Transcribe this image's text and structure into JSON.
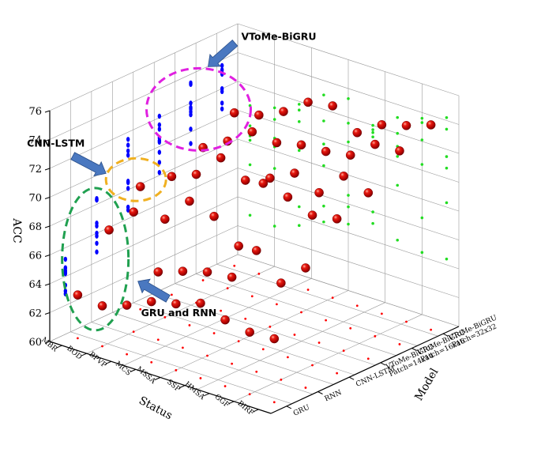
{
  "chart_data": {
    "type": "scatter",
    "axes": {
      "status": {
        "label": "Status",
        "categories": [
          "MBR",
          "BOD",
          "BPVP",
          "MCS",
          "MSSA",
          "SSP",
          "HMSA",
          "GGF",
          "BIRF"
        ]
      },
      "model": {
        "label": "Model",
        "categories": [
          "GRU",
          "RNN",
          "CNN-LSTM",
          "VToMe-BiGRU Patch=14x14",
          "VToMe-BiGRU Patch=16x16",
          "VToMe-BiGRU Patch=32x32"
        ]
      },
      "acc": {
        "label": "ACC",
        "range": [
          60,
          76
        ],
        "ticks": [
          60,
          62,
          64,
          66,
          68,
          70,
          72,
          74,
          76
        ]
      }
    },
    "series": [
      {
        "style": "red-ball",
        "color": "#d40000",
        "points": [
          {
            "status": "MBR",
            "model": "GRU",
            "acc": 63.0
          },
          {
            "status": "MBR",
            "model": "RNN",
            "acc": 66.5
          },
          {
            "status": "MBR",
            "model": "CNN-LSTM",
            "acc": 68.5
          },
          {
            "status": "MBR",
            "model": "VToMe-BiGRU Patch=14x14",
            "acc": 68.2
          },
          {
            "status": "MBR",
            "model": "VToMe-BiGRU Patch=16x16",
            "acc": 69.2
          },
          {
            "status": "MBR",
            "model": "VToMe-BiGRU Patch=32x32",
            "acc": 70.6
          },
          {
            "status": "BOD",
            "model": "GRU",
            "acc": 62.8
          },
          {
            "status": "BOD",
            "model": "RNN",
            "acc": 68.3
          },
          {
            "status": "BOD",
            "model": "CNN-LSTM",
            "acc": 66.8
          },
          {
            "status": "BOD",
            "model": "VToMe-BiGRU Patch=14x14",
            "acc": 68.9
          },
          {
            "status": "BOD",
            "model": "VToMe-BiGRU Patch=16x16",
            "acc": 70.2
          },
          {
            "status": "BOD",
            "model": "VToMe-BiGRU Patch=32x32",
            "acc": 71.0
          },
          {
            "status": "BPVP",
            "model": "GRU",
            "acc": 63.4
          },
          {
            "status": "BPVP",
            "model": "RNN",
            "acc": 64.7
          },
          {
            "status": "BPVP",
            "model": "CNN-LSTM",
            "acc": 68.6
          },
          {
            "status": "BPVP",
            "model": "VToMe-BiGRU Patch=14x14",
            "acc": 70.6
          },
          {
            "status": "BPVP",
            "model": "VToMe-BiGRU Patch=16x16",
            "acc": 71.4
          },
          {
            "status": "BPVP",
            "model": "VToMe-BiGRU Patch=32x32",
            "acc": 71.8
          },
          {
            "status": "MCS",
            "model": "GRU",
            "acc": 64.2
          },
          {
            "status": "MCS",
            "model": "RNN",
            "acc": 65.3
          },
          {
            "status": "MCS",
            "model": "CNN-LSTM",
            "acc": 68.1
          },
          {
            "status": "MCS",
            "model": "VToMe-BiGRU Patch=14x14",
            "acc": 69.6
          },
          {
            "status": "MCS",
            "model": "VToMe-BiGRU Patch=16x16",
            "acc": 71.2
          },
          {
            "status": "MCS",
            "model": "VToMe-BiGRU Patch=32x32",
            "acc": 73.0
          },
          {
            "status": "MSSA",
            "model": "GRU",
            "acc": 64.6
          },
          {
            "status": "MSSA",
            "model": "RNN",
            "acc": 65.8
          },
          {
            "status": "MSSA",
            "model": "CNN-LSTM",
            "acc": 66.6
          },
          {
            "status": "MSSA",
            "model": "VToMe-BiGRU Patch=14x14",
            "acc": 70.3
          },
          {
            "status": "MSSA",
            "model": "VToMe-BiGRU Patch=16x16",
            "acc": 71.6
          },
          {
            "status": "MSSA",
            "model": "VToMe-BiGRU Patch=32x32",
            "acc": 73.3
          },
          {
            "status": "SSP",
            "model": "GRU",
            "acc": 65.2
          },
          {
            "status": "SSP",
            "model": "RNN",
            "acc": 66.0
          },
          {
            "status": "SSP",
            "model": "CNN-LSTM",
            "acc": 71.5
          },
          {
            "status": "SSP",
            "model": "VToMe-BiGRU Patch=14x14",
            "acc": 71.2
          },
          {
            "status": "SSP",
            "model": "VToMe-BiGRU Patch=16x16",
            "acc": 71.7
          },
          {
            "status": "SSP",
            "model": "VToMe-BiGRU Patch=32x32",
            "acc": 72.0
          },
          {
            "status": "HMSA",
            "model": "GRU",
            "acc": 64.6
          },
          {
            "status": "HMSA",
            "model": "RNN",
            "acc": 68.4
          },
          {
            "status": "HMSA",
            "model": "CNN-LSTM",
            "acc": 71.1
          },
          {
            "status": "HMSA",
            "model": "VToMe-BiGRU Patch=14x14",
            "acc": 70.4
          },
          {
            "status": "HMSA",
            "model": "VToMe-BiGRU Patch=16x16",
            "acc": 72.0
          },
          {
            "status": "HMSA",
            "model": "VToMe-BiGRU Patch=32x32",
            "acc": 73.1
          },
          {
            "status": "GGF",
            "model": "GRU",
            "acc": 64.3
          },
          {
            "status": "GGF",
            "model": "RNN",
            "acc": 66.7
          },
          {
            "status": "GGF",
            "model": "CNN-LSTM",
            "acc": 70.4
          },
          {
            "status": "GGF",
            "model": "VToMe-BiGRU Patch=14x14",
            "acc": 72.1
          },
          {
            "status": "GGF",
            "model": "VToMe-BiGRU Patch=16x16",
            "acc": 73.3
          },
          {
            "status": "GGF",
            "model": "VToMe-BiGRU Patch=32x32",
            "acc": 73.6
          },
          {
            "status": "BIRF",
            "model": "GRU",
            "acc": 64.4
          },
          {
            "status": "BIRF",
            "model": "RNN",
            "acc": 68.3
          },
          {
            "status": "BIRF",
            "model": "CNN-LSTM",
            "acc": 70.7
          },
          {
            "status": "BIRF",
            "model": "VToMe-BiGRU Patch=14x14",
            "acc": 71.5
          },
          {
            "status": "BIRF",
            "model": "VToMe-BiGRU Patch=16x16",
            "acc": 73.4
          },
          {
            "status": "BIRF",
            "model": "VToMe-BiGRU Patch=32x32",
            "acc": 74.2
          }
        ]
      }
    ],
    "projections": {
      "back_wall_color": "#0000ff",
      "side_wall_color": "#22dd22",
      "floor_color": "#ff0000"
    },
    "annotations": [
      {
        "text": "VToMe-BiGRU",
        "ring_color": "#e020e0"
      },
      {
        "text": "CNN-LSTM",
        "ring_color": "#f0b020"
      },
      {
        "text": "GRU and RNN",
        "ring_color": "#20a050"
      }
    ],
    "arrow_color": "#4a78c0"
  }
}
